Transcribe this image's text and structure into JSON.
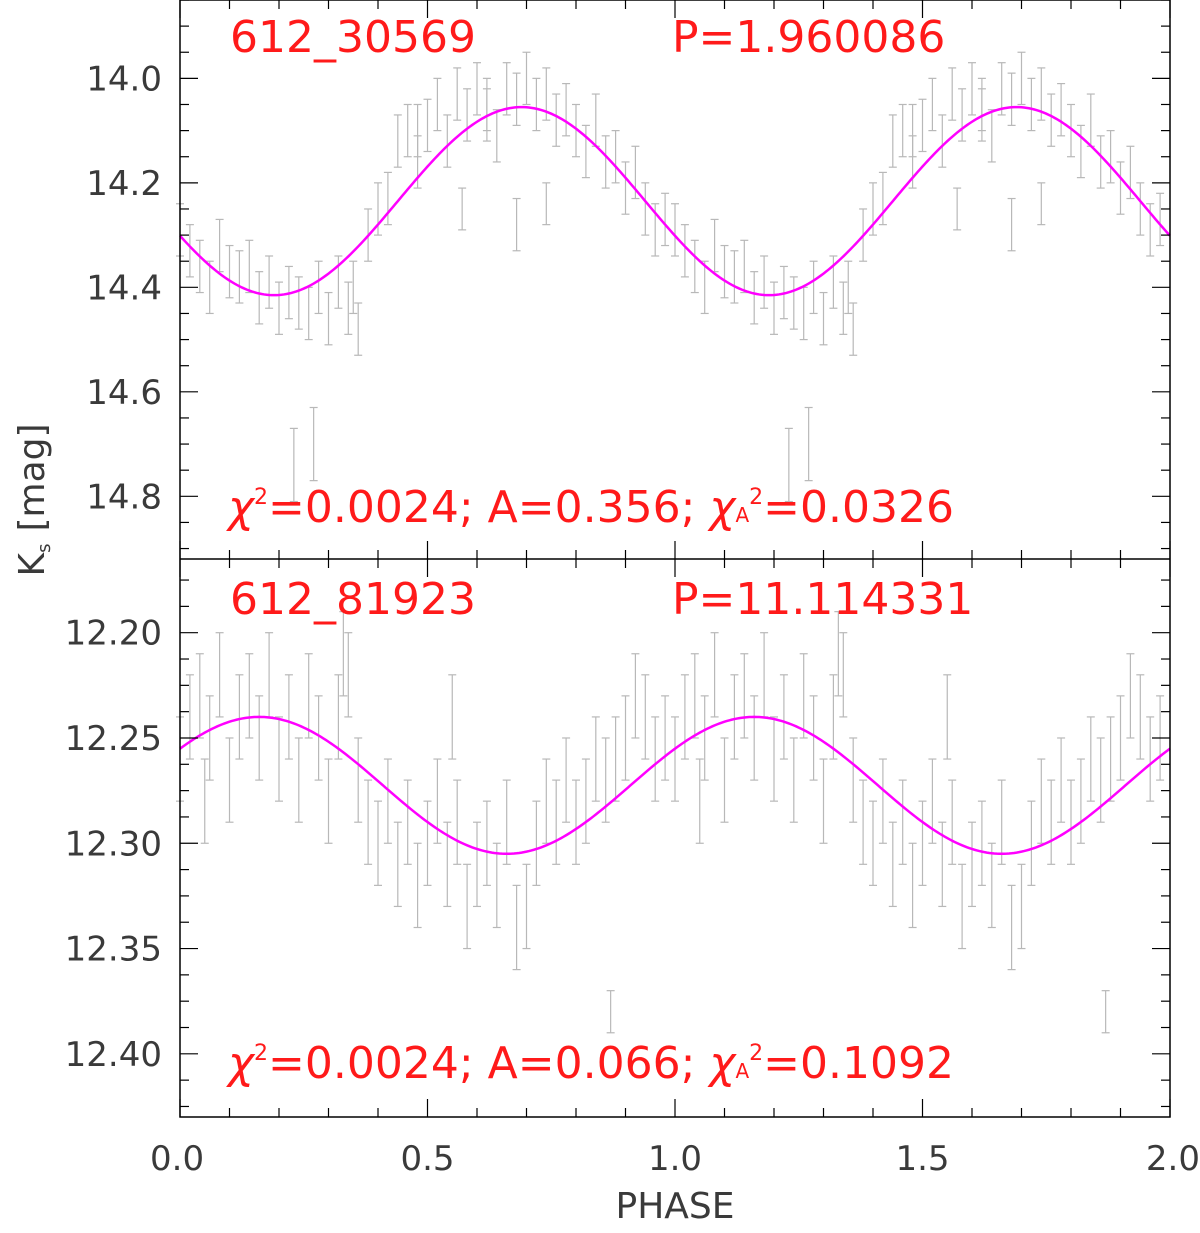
{
  "colors": {
    "frame": "#000000",
    "tick_label": "#3a3a3a",
    "annotation": "#ff1a1a",
    "fit": "#ff00ff",
    "errorbar": "#b8b8b8"
  },
  "xlabel": "PHASE",
  "ylabel_main": "K",
  "ylabel_sub": "s",
  "ylabel_unit": "[mag]",
  "chart_data": [
    {
      "type": "scatter",
      "id": "612_30569",
      "period_text": "P=1.960086",
      "stats": {
        "chi": "χ",
        "sq": "2",
        "chi_text": "=0.0024; A=0.356; ",
        "chia": "χ",
        "chia_sub": "A",
        "chia_sq": "2",
        "chia_text": "=0.0326"
      },
      "xlim": [
        0.0,
        2.0
      ],
      "ylim": [
        14.92,
        13.85
      ],
      "y_inverted": true,
      "yticks": [
        14.0,
        14.2,
        14.4,
        14.6,
        14.8
      ],
      "ytick_labels": [
        "14.0",
        "14.2",
        "14.4",
        "14.6",
        "14.8"
      ],
      "fit": {
        "mean": 14.235,
        "amplitude": 0.18,
        "peak_phase": 0.69,
        "period_in_phase": 1.0
      },
      "points": [
        [
          0.0,
          14.29,
          0.05
        ],
        [
          0.02,
          14.33,
          0.05
        ],
        [
          0.04,
          14.36,
          0.05
        ],
        [
          0.06,
          14.4,
          0.05
        ],
        [
          0.08,
          14.32,
          0.05
        ],
        [
          0.1,
          14.37,
          0.05
        ],
        [
          0.12,
          14.38,
          0.05
        ],
        [
          0.14,
          14.36,
          0.05
        ],
        [
          0.16,
          14.42,
          0.05
        ],
        [
          0.18,
          14.39,
          0.05
        ],
        [
          0.2,
          14.44,
          0.05
        ],
        [
          0.22,
          14.41,
          0.05
        ],
        [
          0.24,
          14.43,
          0.05
        ],
        [
          0.26,
          14.45,
          0.05
        ],
        [
          0.28,
          14.4,
          0.05
        ],
        [
          0.3,
          14.46,
          0.05
        ],
        [
          0.32,
          14.39,
          0.05
        ],
        [
          0.34,
          14.44,
          0.05
        ],
        [
          0.36,
          14.48,
          0.05
        ],
        [
          0.38,
          14.3,
          0.05
        ],
        [
          0.4,
          14.25,
          0.05
        ],
        [
          0.42,
          14.23,
          0.05
        ],
        [
          0.44,
          14.12,
          0.05
        ],
        [
          0.46,
          14.1,
          0.05
        ],
        [
          0.48,
          14.16,
          0.05
        ],
        [
          0.5,
          14.09,
          0.05
        ],
        [
          0.52,
          14.05,
          0.05
        ],
        [
          0.54,
          14.12,
          0.05
        ],
        [
          0.56,
          14.03,
          0.05
        ],
        [
          0.58,
          14.07,
          0.05
        ],
        [
          0.6,
          14.02,
          0.05
        ],
        [
          0.62,
          14.07,
          0.05
        ],
        [
          0.64,
          14.11,
          0.05
        ],
        [
          0.66,
          14.02,
          0.05
        ],
        [
          0.68,
          14.04,
          0.05
        ],
        [
          0.7,
          14.0,
          0.05
        ],
        [
          0.72,
          14.05,
          0.05
        ],
        [
          0.74,
          14.03,
          0.05
        ],
        [
          0.76,
          14.08,
          0.05
        ],
        [
          0.78,
          14.06,
          0.05
        ],
        [
          0.8,
          14.1,
          0.05
        ],
        [
          0.82,
          14.14,
          0.05
        ],
        [
          0.84,
          14.08,
          0.05
        ],
        [
          0.86,
          14.16,
          0.05
        ],
        [
          0.88,
          14.15,
          0.05
        ],
        [
          0.9,
          14.21,
          0.05
        ],
        [
          0.92,
          14.18,
          0.05
        ],
        [
          0.94,
          14.25,
          0.05
        ],
        [
          0.96,
          14.29,
          0.05
        ],
        [
          0.98,
          14.27,
          0.05
        ],
        [
          0.23,
          14.74,
          0.07
        ],
        [
          0.27,
          14.7,
          0.07
        ],
        [
          0.57,
          14.25,
          0.04
        ],
        [
          0.68,
          14.28,
          0.05
        ],
        [
          0.74,
          14.24,
          0.04
        ],
        [
          0.48,
          14.1,
          0.05
        ],
        [
          0.62,
          14.05,
          0.05
        ],
        [
          0.35,
          14.4,
          0.05
        ],
        [
          1.0,
          14.29,
          0.05
        ],
        [
          1.02,
          14.33,
          0.05
        ],
        [
          1.04,
          14.36,
          0.05
        ],
        [
          1.06,
          14.4,
          0.05
        ],
        [
          1.08,
          14.32,
          0.05
        ],
        [
          1.1,
          14.37,
          0.05
        ],
        [
          1.12,
          14.38,
          0.05
        ],
        [
          1.14,
          14.36,
          0.05
        ],
        [
          1.16,
          14.42,
          0.05
        ],
        [
          1.18,
          14.39,
          0.05
        ],
        [
          1.2,
          14.44,
          0.05
        ],
        [
          1.22,
          14.41,
          0.05
        ],
        [
          1.24,
          14.43,
          0.05
        ],
        [
          1.26,
          14.45,
          0.05
        ],
        [
          1.28,
          14.4,
          0.05
        ],
        [
          1.3,
          14.46,
          0.05
        ],
        [
          1.32,
          14.39,
          0.05
        ],
        [
          1.34,
          14.44,
          0.05
        ],
        [
          1.36,
          14.48,
          0.05
        ],
        [
          1.38,
          14.3,
          0.05
        ],
        [
          1.4,
          14.25,
          0.05
        ],
        [
          1.42,
          14.23,
          0.05
        ],
        [
          1.44,
          14.12,
          0.05
        ],
        [
          1.46,
          14.1,
          0.05
        ],
        [
          1.48,
          14.16,
          0.05
        ],
        [
          1.5,
          14.09,
          0.05
        ],
        [
          1.52,
          14.05,
          0.05
        ],
        [
          1.54,
          14.12,
          0.05
        ],
        [
          1.56,
          14.03,
          0.05
        ],
        [
          1.58,
          14.07,
          0.05
        ],
        [
          1.6,
          14.02,
          0.05
        ],
        [
          1.62,
          14.07,
          0.05
        ],
        [
          1.64,
          14.11,
          0.05
        ],
        [
          1.66,
          14.02,
          0.05
        ],
        [
          1.68,
          14.04,
          0.05
        ],
        [
          1.7,
          14.0,
          0.05
        ],
        [
          1.72,
          14.05,
          0.05
        ],
        [
          1.74,
          14.03,
          0.05
        ],
        [
          1.76,
          14.08,
          0.05
        ],
        [
          1.78,
          14.06,
          0.05
        ],
        [
          1.8,
          14.1,
          0.05
        ],
        [
          1.82,
          14.14,
          0.05
        ],
        [
          1.84,
          14.08,
          0.05
        ],
        [
          1.86,
          14.16,
          0.05
        ],
        [
          1.88,
          14.15,
          0.05
        ],
        [
          1.9,
          14.21,
          0.05
        ],
        [
          1.92,
          14.18,
          0.05
        ],
        [
          1.94,
          14.25,
          0.05
        ],
        [
          1.96,
          14.29,
          0.05
        ],
        [
          1.98,
          14.27,
          0.05
        ],
        [
          1.23,
          14.74,
          0.07
        ],
        [
          1.27,
          14.7,
          0.07
        ],
        [
          1.57,
          14.25,
          0.04
        ],
        [
          1.68,
          14.28,
          0.05
        ],
        [
          1.74,
          14.24,
          0.04
        ],
        [
          1.48,
          14.1,
          0.05
        ],
        [
          1.62,
          14.05,
          0.05
        ],
        [
          1.35,
          14.4,
          0.05
        ]
      ]
    },
    {
      "type": "scatter",
      "id": "612_81923",
      "period_text": "P=11.114331",
      "stats": {
        "chi": "χ",
        "sq": "2",
        "chi_text": "=0.0024; A=0.066; ",
        "chia": "χ",
        "chia_sub": "A",
        "chia_sq": "2",
        "chia_text": "=0.1092"
      },
      "xlim": [
        0.0,
        2.0
      ],
      "ylim": [
        12.43,
        12.165
      ],
      "y_inverted": true,
      "yticks": [
        12.2,
        12.25,
        12.3,
        12.35,
        12.4
      ],
      "ytick_labels": [
        "12.20",
        "12.25",
        "12.30",
        "12.35",
        "12.40"
      ],
      "fit": {
        "mean": 12.2725,
        "amplitude": 0.0325,
        "peak_phase": 0.16,
        "period_in_phase": 1.0
      },
      "points": [
        [
          0.0,
          12.26,
          0.02
        ],
        [
          0.02,
          12.24,
          0.02
        ],
        [
          0.04,
          12.23,
          0.02
        ],
        [
          0.06,
          12.25,
          0.02
        ],
        [
          0.08,
          12.22,
          0.02
        ],
        [
          0.1,
          12.27,
          0.02
        ],
        [
          0.12,
          12.24,
          0.02
        ],
        [
          0.14,
          12.23,
          0.02
        ],
        [
          0.16,
          12.25,
          0.02
        ],
        [
          0.18,
          12.22,
          0.02
        ],
        [
          0.2,
          12.26,
          0.02
        ],
        [
          0.22,
          12.24,
          0.02
        ],
        [
          0.24,
          12.27,
          0.02
        ],
        [
          0.26,
          12.23,
          0.02
        ],
        [
          0.28,
          12.25,
          0.02
        ],
        [
          0.3,
          12.28,
          0.02
        ],
        [
          0.32,
          12.24,
          0.02
        ],
        [
          0.34,
          12.22,
          0.02
        ],
        [
          0.36,
          12.27,
          0.02
        ],
        [
          0.38,
          12.29,
          0.02
        ],
        [
          0.4,
          12.3,
          0.02
        ],
        [
          0.42,
          12.28,
          0.02
        ],
        [
          0.44,
          12.31,
          0.02
        ],
        [
          0.46,
          12.29,
          0.02
        ],
        [
          0.48,
          12.32,
          0.02
        ],
        [
          0.5,
          12.3,
          0.02
        ],
        [
          0.52,
          12.28,
          0.02
        ],
        [
          0.54,
          12.31,
          0.02
        ],
        [
          0.56,
          12.29,
          0.02
        ],
        [
          0.58,
          12.33,
          0.02
        ],
        [
          0.6,
          12.31,
          0.02
        ],
        [
          0.62,
          12.3,
          0.02
        ],
        [
          0.64,
          12.32,
          0.02
        ],
        [
          0.66,
          12.29,
          0.02
        ],
        [
          0.68,
          12.34,
          0.02
        ],
        [
          0.7,
          12.33,
          0.02
        ],
        [
          0.72,
          12.3,
          0.02
        ],
        [
          0.74,
          12.28,
          0.02
        ],
        [
          0.76,
          12.29,
          0.02
        ],
        [
          0.78,
          12.27,
          0.02
        ],
        [
          0.8,
          12.29,
          0.02
        ],
        [
          0.82,
          12.28,
          0.02
        ],
        [
          0.84,
          12.26,
          0.02
        ],
        [
          0.86,
          12.27,
          0.02
        ],
        [
          0.88,
          12.26,
          0.02
        ],
        [
          0.9,
          12.25,
          0.02
        ],
        [
          0.92,
          12.23,
          0.02
        ],
        [
          0.94,
          12.24,
          0.02
        ],
        [
          0.96,
          12.26,
          0.02
        ],
        [
          0.98,
          12.25,
          0.02
        ],
        [
          0.87,
          12.38,
          0.01
        ],
        [
          0.55,
          12.24,
          0.02
        ],
        [
          0.33,
          12.21,
          0.02
        ],
        [
          0.05,
          12.28,
          0.02
        ],
        [
          1.0,
          12.26,
          0.02
        ],
        [
          1.02,
          12.24,
          0.02
        ],
        [
          1.04,
          12.23,
          0.02
        ],
        [
          1.06,
          12.25,
          0.02
        ],
        [
          1.08,
          12.22,
          0.02
        ],
        [
          1.1,
          12.27,
          0.02
        ],
        [
          1.12,
          12.24,
          0.02
        ],
        [
          1.14,
          12.23,
          0.02
        ],
        [
          1.16,
          12.25,
          0.02
        ],
        [
          1.18,
          12.22,
          0.02
        ],
        [
          1.2,
          12.26,
          0.02
        ],
        [
          1.22,
          12.24,
          0.02
        ],
        [
          1.24,
          12.27,
          0.02
        ],
        [
          1.26,
          12.23,
          0.02
        ],
        [
          1.28,
          12.25,
          0.02
        ],
        [
          1.3,
          12.28,
          0.02
        ],
        [
          1.32,
          12.24,
          0.02
        ],
        [
          1.34,
          12.22,
          0.02
        ],
        [
          1.36,
          12.27,
          0.02
        ],
        [
          1.38,
          12.29,
          0.02
        ],
        [
          1.4,
          12.3,
          0.02
        ],
        [
          1.42,
          12.28,
          0.02
        ],
        [
          1.44,
          12.31,
          0.02
        ],
        [
          1.46,
          12.29,
          0.02
        ],
        [
          1.48,
          12.32,
          0.02
        ],
        [
          1.5,
          12.3,
          0.02
        ],
        [
          1.52,
          12.28,
          0.02
        ],
        [
          1.54,
          12.31,
          0.02
        ],
        [
          1.56,
          12.29,
          0.02
        ],
        [
          1.58,
          12.33,
          0.02
        ],
        [
          1.6,
          12.31,
          0.02
        ],
        [
          1.62,
          12.3,
          0.02
        ],
        [
          1.64,
          12.32,
          0.02
        ],
        [
          1.66,
          12.29,
          0.02
        ],
        [
          1.68,
          12.34,
          0.02
        ],
        [
          1.7,
          12.33,
          0.02
        ],
        [
          1.72,
          12.3,
          0.02
        ],
        [
          1.74,
          12.28,
          0.02
        ],
        [
          1.76,
          12.29,
          0.02
        ],
        [
          1.78,
          12.27,
          0.02
        ],
        [
          1.8,
          12.29,
          0.02
        ],
        [
          1.82,
          12.28,
          0.02
        ],
        [
          1.84,
          12.26,
          0.02
        ],
        [
          1.86,
          12.27,
          0.02
        ],
        [
          1.88,
          12.26,
          0.02
        ],
        [
          1.9,
          12.25,
          0.02
        ],
        [
          1.92,
          12.23,
          0.02
        ],
        [
          1.94,
          12.24,
          0.02
        ],
        [
          1.96,
          12.26,
          0.02
        ],
        [
          1.98,
          12.25,
          0.02
        ],
        [
          1.87,
          12.38,
          0.01
        ],
        [
          1.55,
          12.24,
          0.02
        ],
        [
          1.33,
          12.21,
          0.02
        ],
        [
          1.05,
          12.28,
          0.02
        ]
      ]
    }
  ],
  "xticks": [
    0.0,
    0.5,
    1.0,
    1.5,
    2.0
  ],
  "xtick_labels": [
    "0.0",
    "0.5",
    "1.0",
    "1.5",
    "2.0"
  ]
}
